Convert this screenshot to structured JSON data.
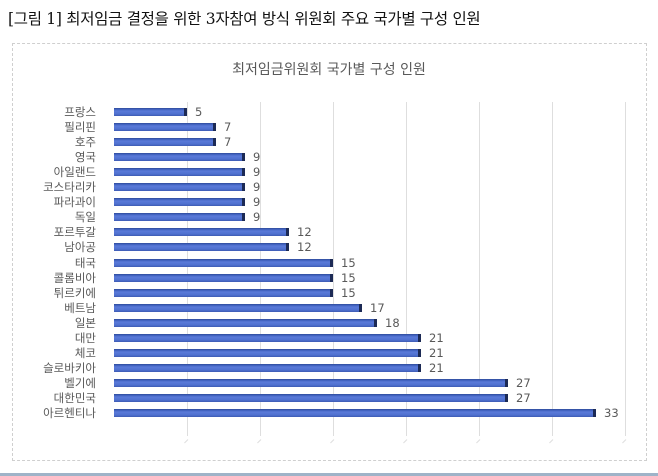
{
  "figure": {
    "caption": "[그림 1] 최저임금 결정을 위한 3자참여 방식 위원회 주요 국가별 구성 인원"
  },
  "chart_data": {
    "type": "bar",
    "orientation": "horizontal",
    "title": "최저임금위원회 국가별 구성 인원",
    "xlabel": "",
    "ylabel": "",
    "categories": [
      "프랑스",
      "필리핀",
      "호주",
      "영국",
      "아일랜드",
      "코스타리카",
      "파라과이",
      "독일",
      "포르투갈",
      "남아공",
      "태국",
      "콜롬비아",
      "튀르키에",
      "베트남",
      "일본",
      "대만",
      "체코",
      "슬로바키아",
      "벨기에",
      "대한민국",
      "아르헨티나"
    ],
    "values": [
      5,
      7,
      7,
      9,
      9,
      9,
      9,
      9,
      12,
      12,
      15,
      15,
      15,
      17,
      18,
      21,
      21,
      21,
      27,
      27,
      33
    ],
    "xlim": [
      0,
      35
    ],
    "gridlines": [
      5,
      10,
      15,
      20,
      25,
      30,
      35
    ],
    "grid": true,
    "data_labels": true,
    "legend": "none",
    "bar_color": "#4f70cf"
  }
}
